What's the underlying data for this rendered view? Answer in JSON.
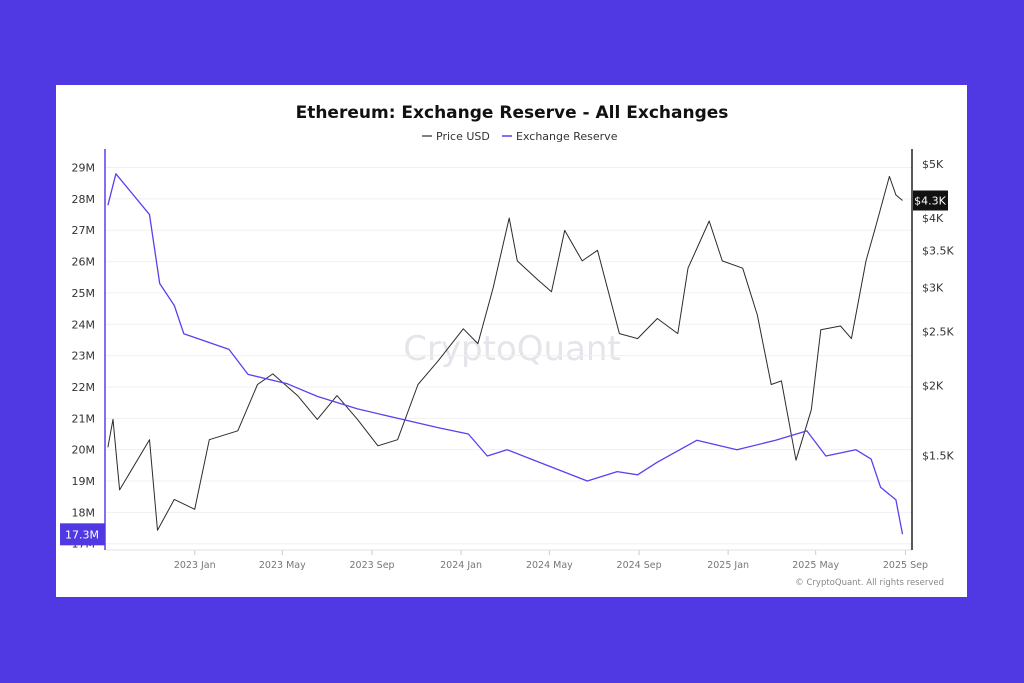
{
  "colors": {
    "background": "#5039e2",
    "price": "#2b2b2b",
    "reserve": "#5b3ff0",
    "badge_left": "#5039e2",
    "badge_right": "#111111"
  },
  "chart_data": {
    "type": "line",
    "title": "Ethereum: Exchange Reserve - All Exchanges",
    "legend_position": "top-center",
    "watermark": "CryptoQuant",
    "copyright": "© CryptoQuant. All rights reserved",
    "grid": true,
    "x_ticks": [
      "2023 Jan",
      "2023 May",
      "2023 Sep",
      "2024 Jan",
      "2024 May",
      "2024 Sep",
      "2025 Jan",
      "2025 May",
      "2025 Sep"
    ],
    "x_tick_dates": [
      "2023-01-01",
      "2023-05-01",
      "2023-09-01",
      "2024-01-01",
      "2024-05-01",
      "2024-09-01",
      "2025-01-01",
      "2025-05-01",
      "2025-09-01"
    ],
    "xlim": [
      "2022-08-31",
      "2025-09-10"
    ],
    "y_left": {
      "ticks": [
        "29M",
        "28M",
        "27M",
        "26M",
        "25M",
        "24M",
        "23M",
        "22M",
        "21M",
        "20M",
        "19M",
        "18M",
        "17M"
      ],
      "tick_values": [
        29,
        28,
        27,
        26,
        25,
        24,
        23,
        22,
        21,
        20,
        19,
        18,
        17
      ],
      "ylim": [
        16.8,
        29.4
      ],
      "current_label": "17.3M",
      "unit": "M"
    },
    "y_right": {
      "ticks": [
        "$5K",
        "$4K",
        "$3.5K",
        "$3K",
        "$2.5K",
        "$2K",
        "$1.5K"
      ],
      "tick_values": [
        5000,
        4000,
        3500,
        3000,
        2500,
        2000,
        1500
      ],
      "ylim": [
        1014,
        5190
      ],
      "scale": "log",
      "current_label": "$4.3K"
    },
    "series": [
      {
        "name": "Price USD",
        "axis": "right",
        "points": [
          [
            "2022-09-04",
            1550
          ],
          [
            "2022-09-11",
            1740
          ],
          [
            "2022-09-20",
            1300
          ],
          [
            "2022-10-31",
            1600
          ],
          [
            "2022-11-11",
            1100
          ],
          [
            "2022-12-04",
            1250
          ],
          [
            "2023-01-01",
            1200
          ],
          [
            "2023-01-21",
            1600
          ],
          [
            "2023-03-01",
            1660
          ],
          [
            "2023-03-28",
            2010
          ],
          [
            "2023-04-18",
            2100
          ],
          [
            "2023-05-22",
            1920
          ],
          [
            "2023-06-18",
            1740
          ],
          [
            "2023-07-15",
            1920
          ],
          [
            "2023-08-12",
            1740
          ],
          [
            "2023-09-09",
            1560
          ],
          [
            "2023-10-06",
            1600
          ],
          [
            "2023-11-03",
            2010
          ],
          [
            "2023-12-01",
            2220
          ],
          [
            "2024-01-04",
            2530
          ],
          [
            "2024-01-24",
            2380
          ],
          [
            "2024-02-14",
            3000
          ],
          [
            "2024-03-07",
            4000
          ],
          [
            "2024-03-18",
            3350
          ],
          [
            "2024-04-15",
            3100
          ],
          [
            "2024-05-04",
            2950
          ],
          [
            "2024-05-22",
            3800
          ],
          [
            "2024-06-15",
            3350
          ],
          [
            "2024-07-06",
            3500
          ],
          [
            "2024-08-05",
            2480
          ],
          [
            "2024-08-30",
            2430
          ],
          [
            "2024-09-26",
            2640
          ],
          [
            "2024-10-24",
            2480
          ],
          [
            "2024-11-07",
            3250
          ],
          [
            "2024-12-06",
            3950
          ],
          [
            "2024-12-24",
            3350
          ],
          [
            "2025-01-21",
            3250
          ],
          [
            "2025-02-10",
            2680
          ],
          [
            "2025-03-01",
            2010
          ],
          [
            "2025-03-15",
            2040
          ],
          [
            "2025-04-04",
            1470
          ],
          [
            "2025-04-25",
            1810
          ],
          [
            "2025-05-08",
            2520
          ],
          [
            "2025-06-04",
            2560
          ],
          [
            "2025-06-19",
            2430
          ],
          [
            "2025-07-09",
            3350
          ],
          [
            "2025-07-22",
            3850
          ],
          [
            "2025-08-10",
            4750
          ],
          [
            "2025-08-19",
            4400
          ],
          [
            "2025-08-28",
            4300
          ]
        ]
      },
      {
        "name": "Exchange Reserve",
        "axis": "left",
        "points": [
          [
            "2022-09-04",
            27.8
          ],
          [
            "2022-09-15",
            28.8
          ],
          [
            "2022-10-31",
            27.5
          ],
          [
            "2022-11-14",
            25.3
          ],
          [
            "2022-12-04",
            24.6
          ],
          [
            "2022-12-17",
            23.7
          ],
          [
            "2023-02-17",
            23.2
          ],
          [
            "2023-03-15",
            22.4
          ],
          [
            "2023-05-08",
            22.1
          ],
          [
            "2023-06-18",
            21.7
          ],
          [
            "2023-08-12",
            21.3
          ],
          [
            "2023-10-06",
            21.0
          ],
          [
            "2023-12-01",
            20.7
          ],
          [
            "2024-01-11",
            20.5
          ],
          [
            "2024-02-06",
            19.8
          ],
          [
            "2024-03-04",
            20.0
          ],
          [
            "2024-04-28",
            19.5
          ],
          [
            "2024-06-22",
            19.0
          ],
          [
            "2024-08-02",
            19.3
          ],
          [
            "2024-08-30",
            19.2
          ],
          [
            "2024-09-26",
            19.6
          ],
          [
            "2024-11-19",
            20.3
          ],
          [
            "2025-01-13",
            20.0
          ],
          [
            "2025-03-07",
            20.3
          ],
          [
            "2025-04-19",
            20.6
          ],
          [
            "2025-05-15",
            19.8
          ],
          [
            "2025-06-25",
            20.0
          ],
          [
            "2025-07-16",
            19.7
          ],
          [
            "2025-07-29",
            18.8
          ],
          [
            "2025-08-19",
            18.4
          ],
          [
            "2025-08-28",
            17.3
          ]
        ]
      }
    ]
  }
}
